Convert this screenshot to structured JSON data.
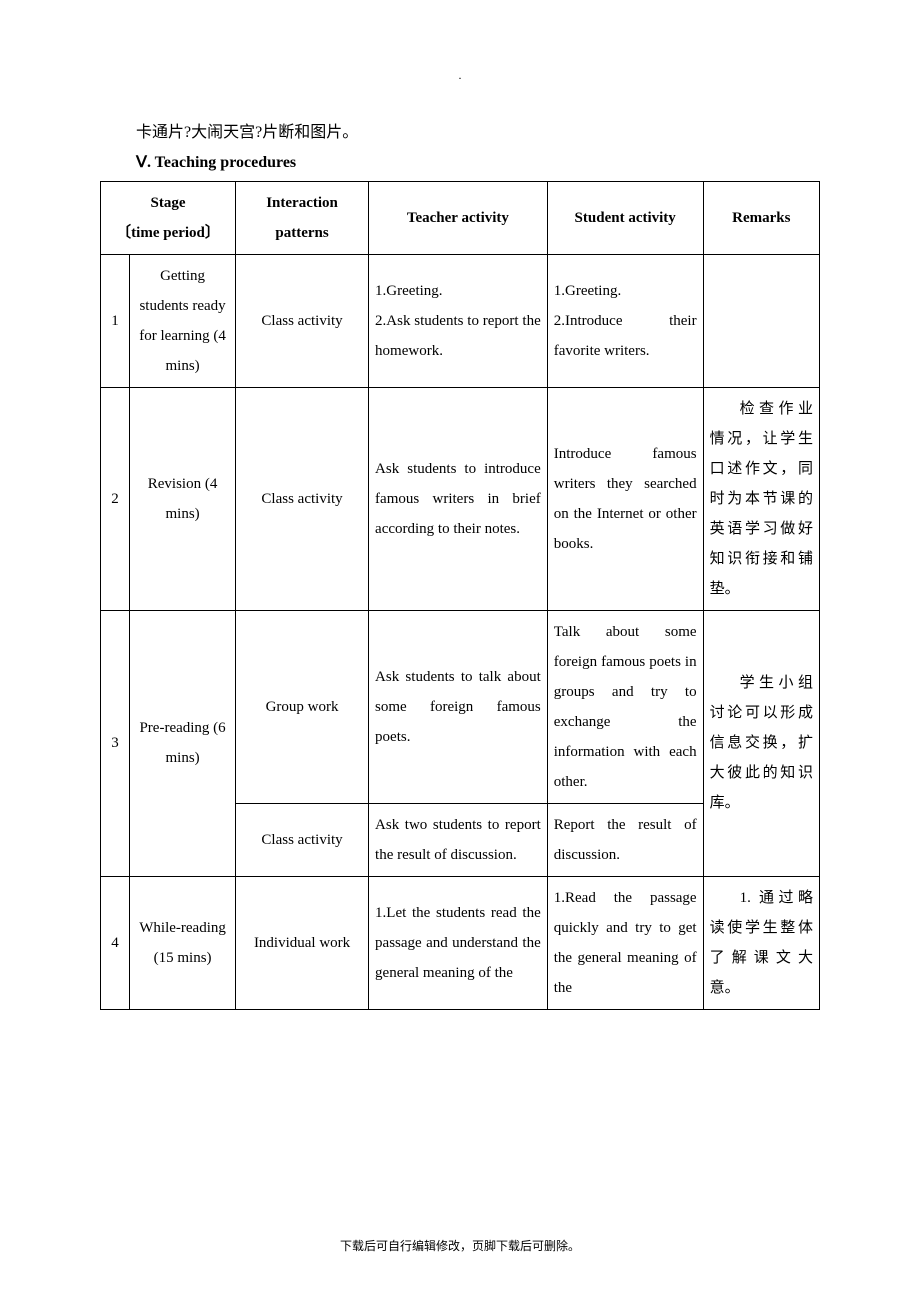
{
  "header_dot": ".",
  "intro_text": "卡通片?大闹天宫?片断和图片。",
  "section_title": "Ⅴ. Teaching procedures",
  "table": {
    "headers": {
      "stage_line1": "Stage",
      "stage_line2": "〔time period〕",
      "interaction_line1": "Interaction",
      "interaction_line2": "patterns",
      "teacher": "Teacher activity",
      "student": "Student activity",
      "remarks": "Remarks"
    },
    "rows": [
      {
        "num": "1",
        "stage": "Getting students ready for learning (4 mins)",
        "interaction": "Class activity",
        "teacher": "1.Greeting.\n2.Ask students to report the homework.",
        "student": "1.Greeting.\n2.Introduce their favorite writers.",
        "remarks": ""
      },
      {
        "num": "2",
        "stage": "Revision (4 mins)",
        "interaction": "Class activity",
        "teacher": "Ask students to introduce famous writers in brief according to their notes.",
        "student": "Introduce famous writers they searched on the Internet or other books.",
        "remarks": "检查作业情况，让学生口述作文，同时为本节课的英语学习做好知识衔接和铺垫。"
      },
      {
        "num": "3",
        "stage": "Pre-reading (6 mins)",
        "sub": [
          {
            "interaction": "Group work",
            "teacher": "Ask students to talk about some foreign famous poets.",
            "student": "Talk about some foreign famous poets in groups and try to exchange the information with each other."
          },
          {
            "interaction": "Class activity",
            "teacher": "Ask two students to report the result of discussion.",
            "student": "Report the result of discussion."
          }
        ],
        "remarks": "学生小组讨论可以形成信息交换，扩大彼此的知识库。"
      },
      {
        "num": "4",
        "stage": "While-reading (15 mins)",
        "interaction": "Individual work",
        "teacher": "1.Let the students read the passage and understand the general meaning of the",
        "student": "1.Read the passage quickly and try to get the general meaning of the",
        "remarks": "1. 通过略读使学生整体了解课文大意。"
      }
    ]
  },
  "footer": "下载后可自行编辑修改，页脚下载后可删除。"
}
